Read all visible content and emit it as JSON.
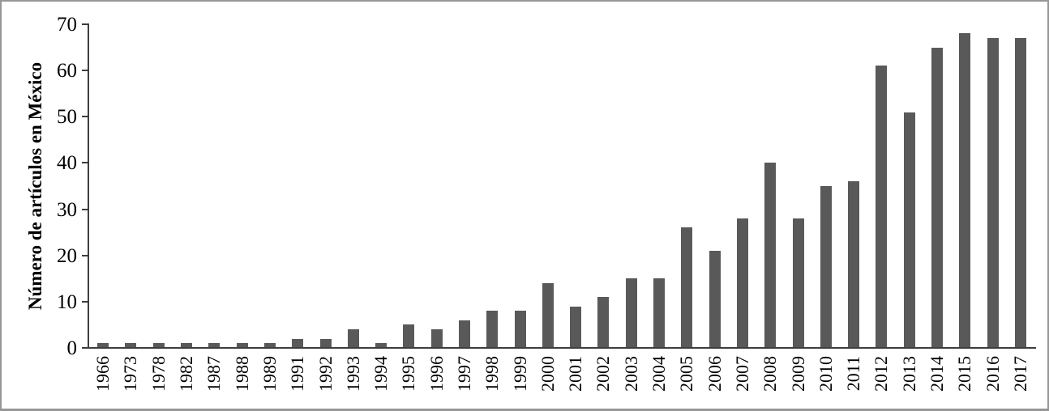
{
  "chart_data": {
    "type": "bar",
    "title": "",
    "xlabel": "",
    "ylabel": "Número de artículos en México",
    "ylim": [
      0,
      70
    ],
    "yticks": [
      0,
      10,
      20,
      30,
      40,
      50,
      60,
      70
    ],
    "grid": false,
    "legend": null,
    "bar_color": "#595959",
    "categories": [
      "1966",
      "1973",
      "1978",
      "1982",
      "1987",
      "1988",
      "1989",
      "1991",
      "1992",
      "1993",
      "1994",
      "1995",
      "1996",
      "1997",
      "1998",
      "1999",
      "2000",
      "2001",
      "2002",
      "2003",
      "2004",
      "2005",
      "2006",
      "2007",
      "2008",
      "2009",
      "2010",
      "2011",
      "2012",
      "2013",
      "2014",
      "2015",
      "2016",
      "2017"
    ],
    "values": [
      1,
      1,
      1,
      1,
      1,
      1,
      1,
      2,
      2,
      4,
      1,
      5,
      4,
      6,
      8,
      8,
      14,
      9,
      11,
      15,
      15,
      26,
      21,
      28,
      40,
      28,
      35,
      36,
      61,
      51,
      65,
      68,
      67,
      67
    ]
  }
}
